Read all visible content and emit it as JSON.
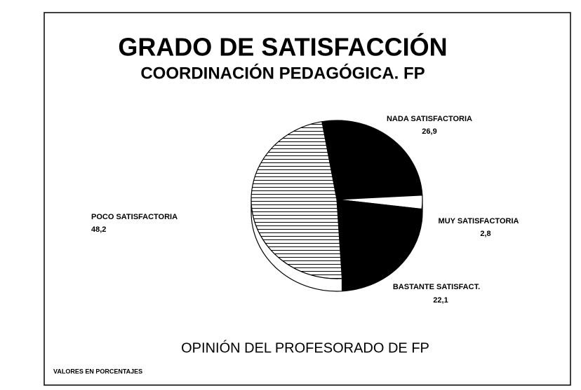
{
  "chart_data": {
    "type": "pie",
    "title": "GRADO DE SATISFACCIÓN",
    "subtitle": "COORDINACIÓN PEDAGÓGICA. FP",
    "caption": "OPINIÓN DEL PROFESORADO DE FP",
    "note": "VALORES EN PORCENTAJES",
    "categories": [
      "NADA SATISFACTORIA",
      "MUY SATISFACTORIA",
      "BASTANTE SATISFACT.",
      "POCO SATISFACTORIA"
    ],
    "values": [
      26.9,
      2.8,
      22.1,
      48.2
    ],
    "value_labels": [
      "26,9",
      "2,8",
      "22,1",
      "48,2"
    ],
    "colors": [
      "#000000",
      "#ffffff",
      "#000000",
      "#ffffff"
    ],
    "hatch": [
      false,
      false,
      false,
      true
    ]
  }
}
